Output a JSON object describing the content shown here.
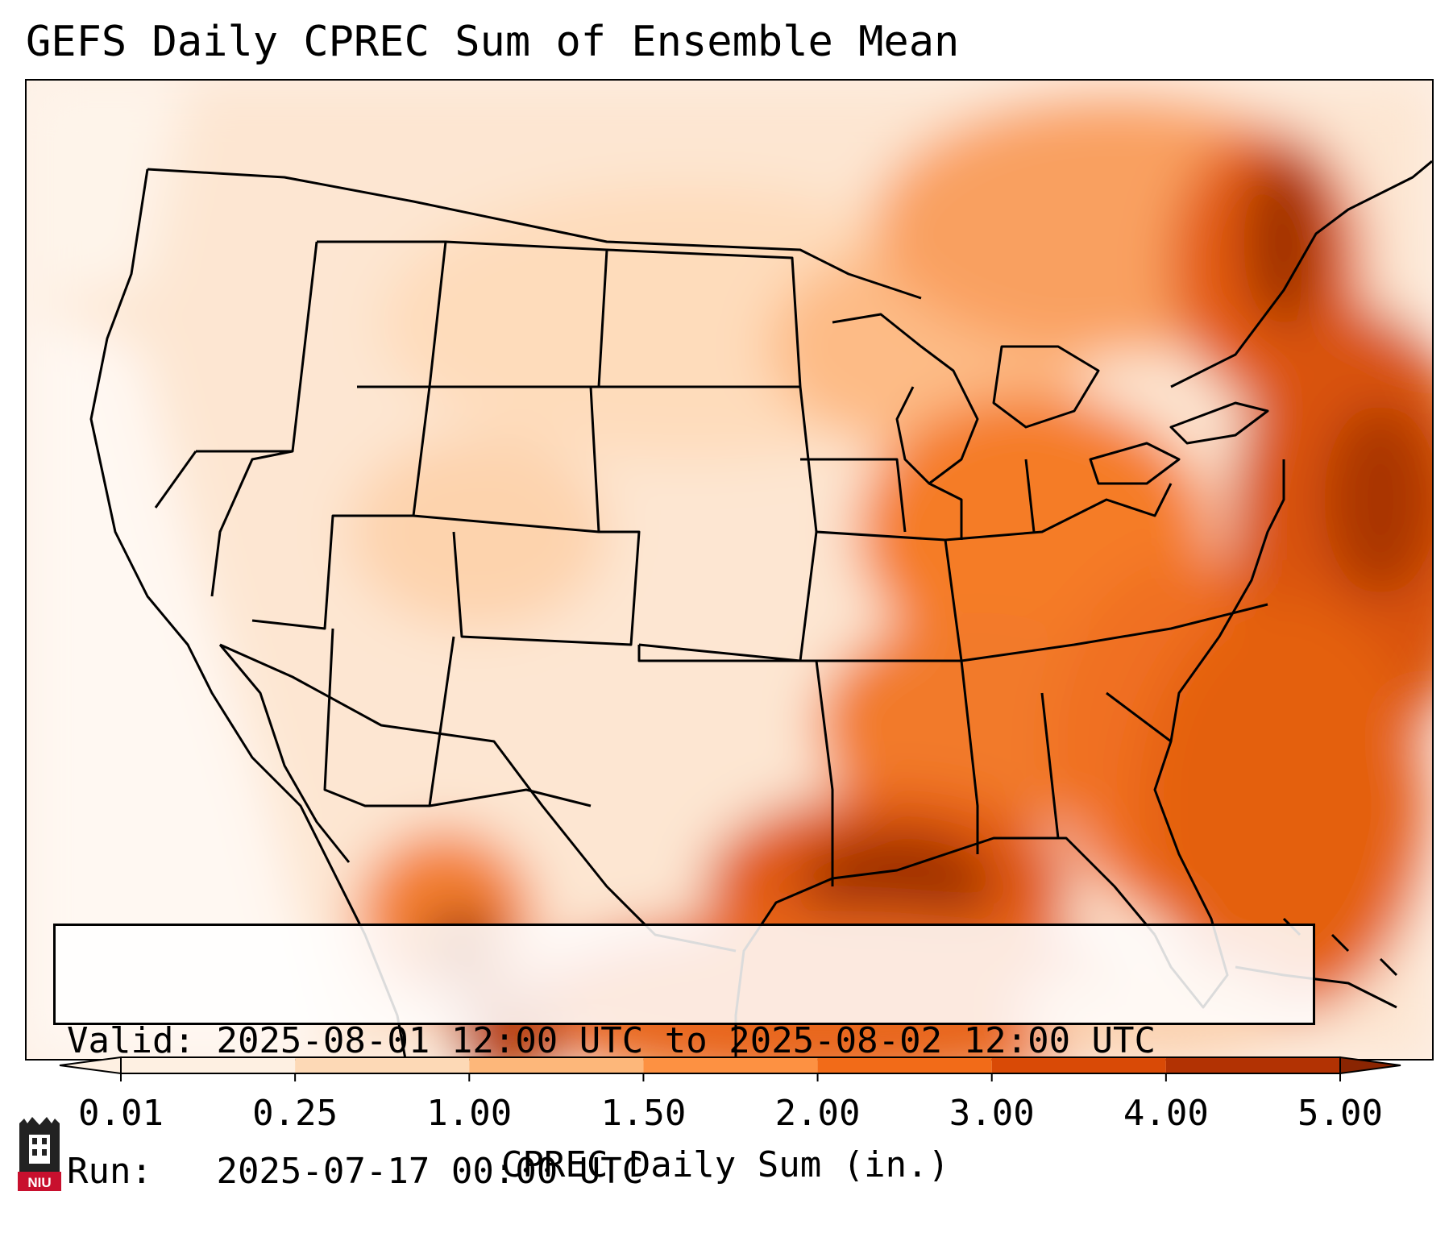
{
  "title": "GEFS Daily CPREC Sum of Ensemble Mean",
  "info": {
    "valid_label": "Valid:",
    "valid_value": "2025-08-01 12:00 UTC to 2025-08-02 12:00 UTC",
    "run_label": "Run:",
    "run_value": "2025-07-17 00:00 UTC"
  },
  "colorbar": {
    "label": "CPREC Daily Sum (in.)",
    "ticks": [
      "0.01",
      "0.25",
      "1.00",
      "1.50",
      "2.00",
      "3.00",
      "4.00",
      "5.00"
    ],
    "colors": [
      "#fef0e2",
      "#fdd9b6",
      "#fdb77a",
      "#fd9142",
      "#f26b18",
      "#d94a06",
      "#b23203",
      "#8a2502"
    ],
    "extend": "both"
  },
  "logo": {
    "text": "NIU",
    "icon": "niu-castle-logo-icon",
    "color": "#c8102e"
  },
  "map": {
    "region": "Contiguous United States, northern Mexico, Gulf of Mexico, western Atlantic",
    "overlays": [
      "state-borders",
      "country-borders",
      "coastlines"
    ]
  }
}
